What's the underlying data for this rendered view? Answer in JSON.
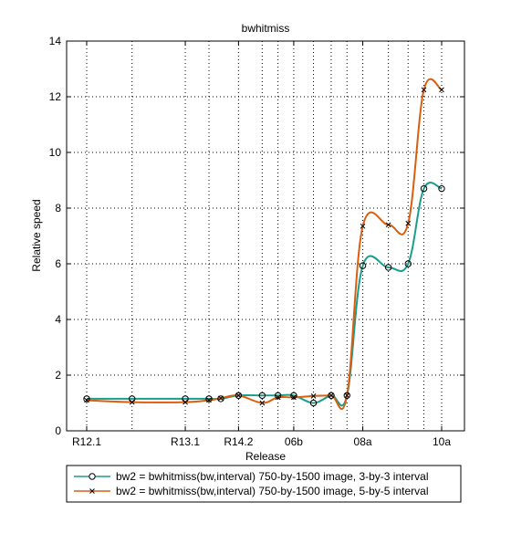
{
  "chart_data": {
    "type": "line",
    "title": "bwhitmiss",
    "xlabel": "Release",
    "ylabel": "Relative speed",
    "xlim": [
      0,
      20
    ],
    "ylim": [
      0,
      14
    ],
    "grid": true,
    "legend_position": "bottom",
    "x_tick_positions": [
      0,
      5,
      7.7,
      10.5,
      14,
      18
    ],
    "x_tick_labels": [
      "R12.1",
      "R13.1",
      "R14.2",
      "06b",
      "08a",
      "10a"
    ],
    "x_minor_grid": [
      2.3,
      6.2,
      8.9,
      9.7,
      11.5,
      12.4,
      13.2,
      15.3,
      16.3,
      17.1
    ],
    "y_ticks": [
      0,
      2,
      4,
      6,
      8,
      10,
      12,
      14
    ],
    "series": [
      {
        "name": "bw2 = bwhitmiss(bw,interval)  750-by-1500 image, 3-by-3 interval",
        "color": "#1a9e8a",
        "marker": "circle",
        "x": [
          0,
          2.3,
          5,
          6.2,
          6.8,
          7.7,
          8.9,
          9.7,
          10.5,
          11.5,
          12.4,
          13.2,
          14,
          15.3,
          16.3,
          17.1,
          18
        ],
        "y": [
          1.15,
          1.15,
          1.15,
          1.15,
          1.15,
          1.27,
          1.27,
          1.27,
          1.27,
          1.0,
          1.27,
          1.27,
          5.93,
          5.87,
          6.0,
          8.7,
          8.7
        ]
      },
      {
        "name": "bw2 = bwhitmiss(bw,interval)  750-by-1500 image, 5-by-5 interval",
        "color": "#d95f0e",
        "marker": "x",
        "x": [
          0,
          2.3,
          5,
          6.2,
          6.8,
          7.7,
          8.9,
          9.7,
          10.5,
          11.5,
          12.4,
          13.2,
          14,
          15.3,
          16.3,
          17.1,
          18
        ],
        "y": [
          1.1,
          1.03,
          1.03,
          1.1,
          1.17,
          1.27,
          1.0,
          1.2,
          1.2,
          1.25,
          1.27,
          1.27,
          7.35,
          7.4,
          7.45,
          12.25,
          12.25
        ]
      }
    ]
  }
}
